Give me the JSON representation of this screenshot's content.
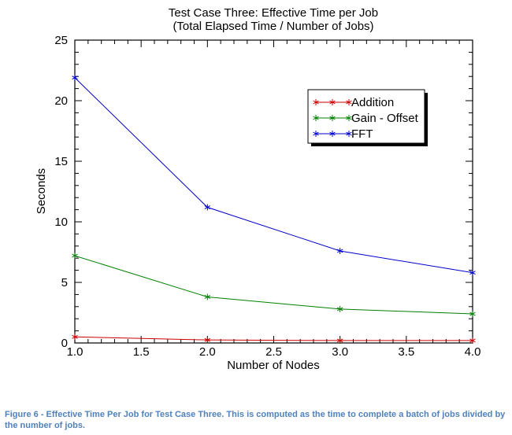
{
  "chart_data": {
    "type": "line",
    "title_line1": "Test Case Three: Effective Time per Job",
    "title_line2": "(Total Elapsed Time / Number of Jobs)",
    "xlabel": "Number of Nodes",
    "ylabel": "Seconds",
    "xlim": [
      1.0,
      4.0
    ],
    "ylim": [
      0,
      25
    ],
    "x_ticks": [
      "1.0",
      "1.5",
      "2.0",
      "2.5",
      "3.0",
      "3.5",
      "4.0"
    ],
    "y_ticks": [
      "0",
      "5",
      "10",
      "15",
      "20",
      "25"
    ],
    "legend_position": "top-right",
    "x": [
      1,
      2,
      3,
      4
    ],
    "series": [
      {
        "name": "Addition",
        "color": "#cc0000",
        "marker": "asterisk",
        "values": [
          0.5,
          0.25,
          0.2,
          0.2
        ]
      },
      {
        "name": "Gain - Offset",
        "color": "#008000",
        "marker": "asterisk",
        "values": [
          7.2,
          3.8,
          2.8,
          2.4
        ]
      },
      {
        "name": "FFT",
        "color": "#0000cc",
        "marker": "asterisk",
        "values": [
          21.9,
          11.2,
          7.6,
          5.8
        ]
      }
    ]
  },
  "caption": "Figure 6 - Effective Time Per Job for Test Case Three. This is computed as the time to complete a batch of jobs divided by the number of jobs."
}
